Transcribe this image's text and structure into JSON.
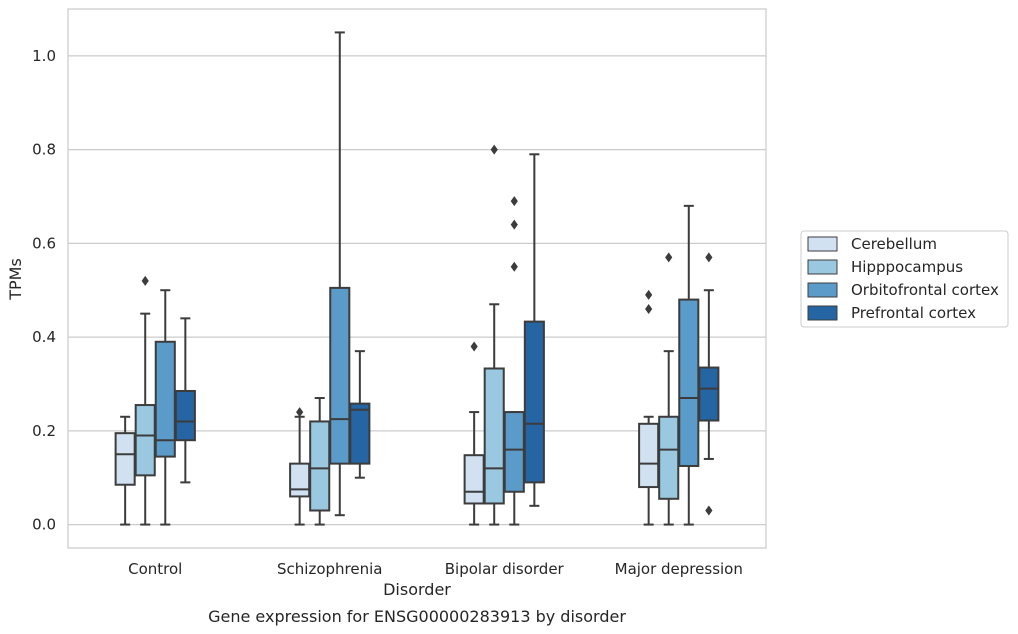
{
  "chart_data": {
    "type": "box",
    "caption": "Gene expression for ENSG00000283913 by disorder",
    "xlabel": "Disorder",
    "ylabel": "TPMs",
    "ylim": [
      -0.05,
      1.1
    ],
    "yticks": [
      "0.0",
      "0.2",
      "0.4",
      "0.6",
      "0.8",
      "1.0"
    ],
    "grid": true,
    "legend_position": "right",
    "categories": [
      "Control",
      "Schizophrenia",
      "Bipolar disorder",
      "Major depression"
    ],
    "series": [
      {
        "name": "Cerebellum",
        "color": "#d2e1f2",
        "boxes": [
          {
            "whislo": 0.0,
            "q1": 0.085,
            "med": 0.15,
            "q3": 0.195,
            "whishi": 0.23,
            "fliers": []
          },
          {
            "whislo": 0.0,
            "q1": 0.06,
            "med": 0.075,
            "q3": 0.13,
            "whishi": 0.23,
            "fliers": [
              0.24
            ]
          },
          {
            "whislo": 0.0,
            "q1": 0.045,
            "med": 0.07,
            "q3": 0.148,
            "whishi": 0.24,
            "fliers": [
              0.38
            ]
          },
          {
            "whislo": 0.0,
            "q1": 0.08,
            "med": 0.13,
            "q3": 0.215,
            "whishi": 0.23,
            "fliers": [
              0.46,
              0.49
            ]
          }
        ]
      },
      {
        "name": "Hipppocampus",
        "color": "#9ac8e0",
        "boxes": [
          {
            "whislo": 0.0,
            "q1": 0.105,
            "med": 0.19,
            "q3": 0.255,
            "whishi": 0.45,
            "fliers": [
              0.52
            ]
          },
          {
            "whislo": 0.0,
            "q1": 0.03,
            "med": 0.12,
            "q3": 0.22,
            "whishi": 0.27,
            "fliers": []
          },
          {
            "whislo": 0.0,
            "q1": 0.045,
            "med": 0.12,
            "q3": 0.333,
            "whishi": 0.47,
            "fliers": [
              0.8
            ]
          },
          {
            "whislo": 0.0,
            "q1": 0.055,
            "med": 0.16,
            "q3": 0.23,
            "whishi": 0.37,
            "fliers": [
              0.57
            ]
          }
        ]
      },
      {
        "name": "Orbitofrontal cortex",
        "color": "#5b9bca",
        "boxes": [
          {
            "whislo": 0.0,
            "q1": 0.145,
            "med": 0.18,
            "q3": 0.39,
            "whishi": 0.5,
            "fliers": []
          },
          {
            "whislo": 0.02,
            "q1": 0.13,
            "med": 0.225,
            "q3": 0.505,
            "whishi": 1.05,
            "fliers": []
          },
          {
            "whislo": 0.0,
            "q1": 0.07,
            "med": 0.16,
            "q3": 0.24,
            "whishi": 0.24,
            "fliers": [
              0.55,
              0.64,
              0.69
            ]
          },
          {
            "whislo": 0.0,
            "q1": 0.125,
            "med": 0.27,
            "q3": 0.48,
            "whishi": 0.68,
            "fliers": []
          }
        ]
      },
      {
        "name": "Prefrontal cortex",
        "color": "#2565a3",
        "boxes": [
          {
            "whislo": 0.09,
            "q1": 0.18,
            "med": 0.22,
            "q3": 0.285,
            "whishi": 0.44,
            "fliers": []
          },
          {
            "whislo": 0.1,
            "q1": 0.13,
            "med": 0.245,
            "q3": 0.258,
            "whishi": 0.37,
            "fliers": []
          },
          {
            "whislo": 0.04,
            "q1": 0.09,
            "med": 0.215,
            "q3": 0.433,
            "whishi": 0.79,
            "fliers": []
          },
          {
            "whislo": 0.14,
            "q1": 0.222,
            "med": 0.29,
            "q3": 0.335,
            "whishi": 0.5,
            "fliers": [
              0.03,
              0.57
            ]
          }
        ]
      }
    ]
  }
}
